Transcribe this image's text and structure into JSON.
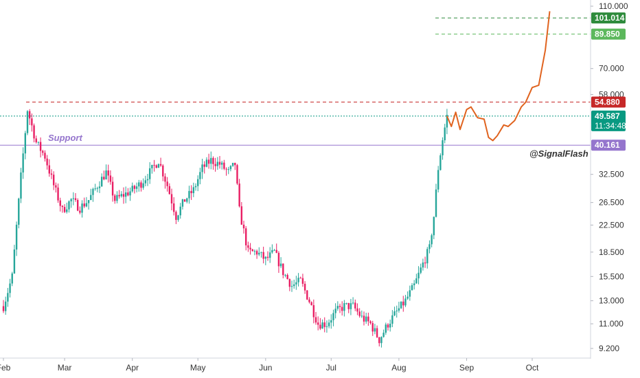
{
  "chart_data": {
    "type": "candlestick",
    "title": "",
    "xlabel": "",
    "ylabel": "",
    "y_scale": "log",
    "ylim": [
      8.6,
      115
    ],
    "y_ticks": [
      "110.000",
      "70.000",
      "58.000",
      "32.500",
      "26.500",
      "22.500",
      "18.500",
      "15.500",
      "13.000",
      "11.000",
      "9.200"
    ],
    "x_ticks": [
      "Feb",
      "Mar",
      "Apr",
      "May",
      "Jun",
      "Jul",
      "Aug",
      "Sep",
      "Oct"
    ],
    "price_path": [
      [
        "Feb 1",
        12.5
      ],
      [
        "Feb 5",
        15.5
      ],
      [
        "Feb 9",
        32
      ],
      [
        "Feb 12",
        52
      ],
      [
        "Feb 16",
        41
      ],
      [
        "Feb 20",
        37
      ],
      [
        "Feb 24",
        30
      ],
      [
        "Feb 28",
        25
      ],
      [
        "Mar 4",
        27
      ],
      [
        "Mar 8",
        25.5
      ],
      [
        "Mar 12",
        27
      ],
      [
        "Mar 16",
        30
      ],
      [
        "Mar 20",
        33
      ],
      [
        "Mar 24",
        27
      ],
      [
        "Mar 28",
        28
      ],
      [
        "Apr 1",
        29
      ],
      [
        "Apr 5",
        30.5
      ],
      [
        "Apr 9",
        33
      ],
      [
        "Apr 13",
        36
      ],
      [
        "Apr 17",
        30
      ],
      [
        "Apr 21",
        24
      ],
      [
        "Apr 25",
        27
      ],
      [
        "Apr 29",
        29
      ],
      [
        "May 3",
        34
      ],
      [
        "May 7",
        36
      ],
      [
        "May 11",
        35
      ],
      [
        "May 15",
        33
      ],
      [
        "May 18",
        35
      ],
      [
        "May 20",
        25
      ],
      [
        "May 24",
        18.5
      ],
      [
        "May 28",
        18.5
      ],
      [
        "Jun 1",
        17.5
      ],
      [
        "Jun 5",
        18.5
      ],
      [
        "Jun 9",
        16
      ],
      [
        "Jun 13",
        14.5
      ],
      [
        "Jun 17",
        15
      ],
      [
        "Jun 21",
        13
      ],
      [
        "Jun 25",
        11
      ],
      [
        "Jun 29",
        11
      ],
      [
        "Jul 3",
        12
      ],
      [
        "Jul 7",
        12.5
      ],
      [
        "Jul 11",
        12.5
      ],
      [
        "Jul 15",
        11.5
      ],
      [
        "Jul 19",
        11
      ],
      [
        "Jul 23",
        9.8
      ],
      [
        "Jul 27",
        11
      ],
      [
        "Jul 31",
        12
      ],
      [
        "Aug 4",
        13
      ],
      [
        "Aug 8",
        14.5
      ],
      [
        "Aug 12",
        17
      ],
      [
        "Aug 15",
        19
      ],
      [
        "Aug 17",
        24
      ],
      [
        "Aug 19",
        34
      ],
      [
        "Aug 21",
        42
      ],
      [
        "Aug 23",
        49.587
      ]
    ],
    "projection": {
      "color": "#e0631f",
      "points": [
        [
          "Aug 23",
          49.587
        ],
        [
          "Aug 25",
          46
        ],
        [
          "Aug 27",
          51
        ],
        [
          "Aug 29",
          45
        ],
        [
          "Sep 1",
          52
        ],
        [
          "Sep 3",
          53
        ],
        [
          "Sep 6",
          49
        ],
        [
          "Sep 9",
          48.5
        ],
        [
          "Sep 11",
          42.5
        ],
        [
          "Sep 13",
          41.5
        ],
        [
          "Sep 15",
          43
        ],
        [
          "Sep 18",
          46.5
        ],
        [
          "Sep 20",
          46
        ],
        [
          "Sep 23",
          48
        ],
        [
          "Sep 26",
          53
        ],
        [
          "Sep 28",
          54.8
        ],
        [
          "Oct 1",
          61
        ],
        [
          "Oct 4",
          62
        ],
        [
          "Oct 7",
          80
        ],
        [
          "Oct 9",
          106
        ]
      ]
    },
    "levels": [
      {
        "name": "target-2",
        "value": 101.014,
        "label": "101.014",
        "color": "#2e8b3c",
        "style": "dashed"
      },
      {
        "name": "target-1",
        "value": 89.85,
        "label": "89.850",
        "color": "#5cb85c",
        "style": "dashed"
      },
      {
        "name": "resistance",
        "value": 54.88,
        "label": "54.880",
        "color": "#c62828",
        "style": "dashed"
      },
      {
        "name": "current-price",
        "value": 49.587,
        "label": "49.587",
        "sublabel": "11:34:48",
        "color": "#089981",
        "style": "dotted"
      },
      {
        "name": "support",
        "value": 40.161,
        "label": "40.161",
        "color": "#9575cd",
        "style": "solid",
        "text": "Support"
      }
    ],
    "up_color": "#26a69a",
    "down_color": "#e91e63",
    "grid": false,
    "annotation": "@SignalFlash"
  }
}
